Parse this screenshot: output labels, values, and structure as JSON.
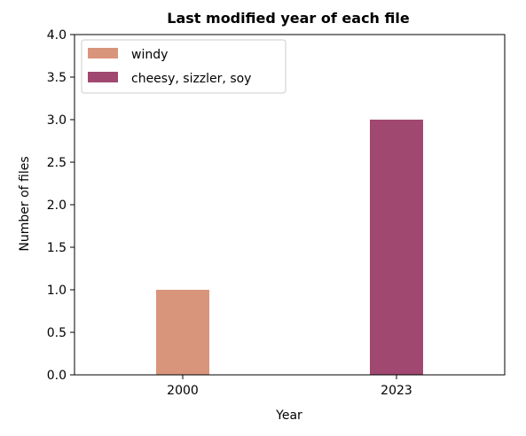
{
  "chart_data": {
    "type": "bar",
    "title": "Last modified year of each file",
    "xlabel": "Year",
    "ylabel": "Number of files",
    "categories": [
      "2000",
      "2023"
    ],
    "bars": [
      {
        "category": "2000",
        "value": 1,
        "color": "#d9957b"
      },
      {
        "category": "2023",
        "value": 3,
        "color": "#a0486f"
      }
    ],
    "ylim": [
      0,
      4.0
    ],
    "yticks": [
      "0.0",
      "0.5",
      "1.0",
      "1.5",
      "2.0",
      "2.5",
      "3.0",
      "3.5",
      "4.0"
    ],
    "grid": false,
    "legend": {
      "placement": "top-left",
      "entries": [
        {
          "label": "windy",
          "color": "#d9957b"
        },
        {
          "label": "cheesy, sizzler, soy",
          "color": "#a0486f"
        }
      ]
    }
  }
}
